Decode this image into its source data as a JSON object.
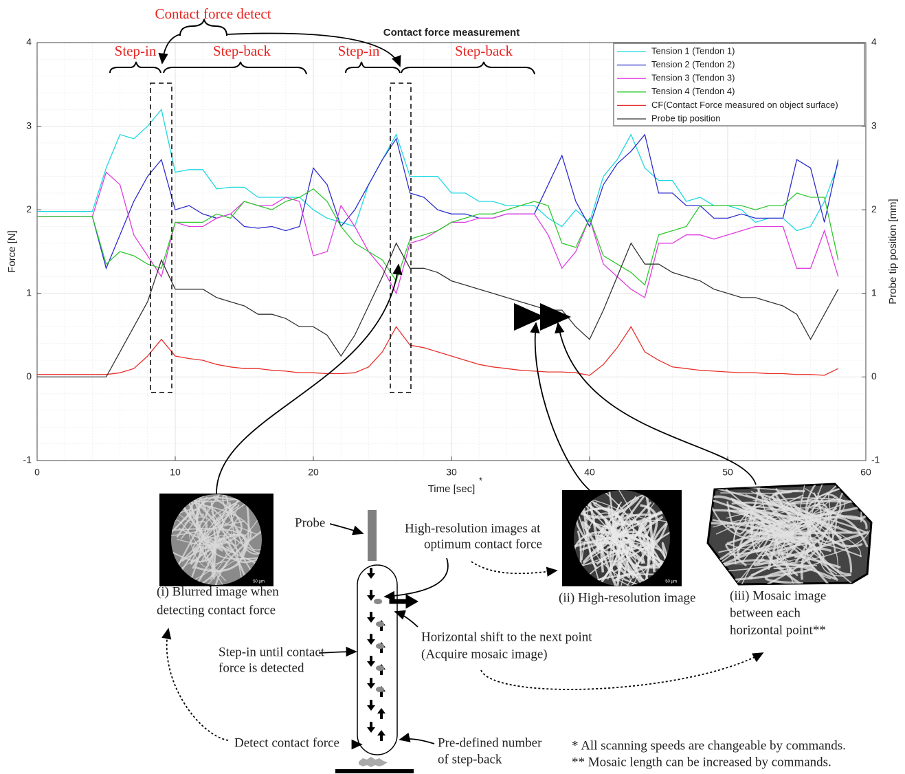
{
  "chart_data": {
    "type": "line",
    "title": "Contact force measurement",
    "xlabel": "Time [sec]",
    "xlabel_note": "*",
    "ylabel": "Force [N]",
    "y2label": "Probe tip position [mm]",
    "xlim": [
      0,
      60
    ],
    "xticks": [
      0,
      10,
      20,
      30,
      40,
      50,
      60
    ],
    "ylim": [
      -1,
      4
    ],
    "yticks": [
      -1,
      0,
      1,
      2,
      3,
      4
    ],
    "y2lim": [
      -1,
      4
    ],
    "y2ticks": [
      -1,
      0,
      1,
      2,
      3,
      4
    ],
    "grid": true,
    "legend": "upper right",
    "x": [
      0,
      1,
      2,
      3,
      4,
      5,
      6,
      7,
      8,
      9,
      10,
      11,
      12,
      13,
      14,
      15,
      16,
      17,
      18,
      19,
      20,
      21,
      22,
      23,
      24,
      25,
      26,
      27,
      28,
      29,
      30,
      31,
      32,
      33,
      34,
      35,
      36,
      37,
      38,
      39,
      40,
      41,
      42,
      43,
      44,
      45,
      46,
      47,
      48,
      49,
      50,
      51,
      52,
      53,
      54,
      55,
      56,
      57,
      58
    ],
    "series": [
      {
        "name": "Tension 1 (Tendon 1)",
        "color": "#1fd8e0",
        "values": [
          1.98,
          1.98,
          1.98,
          1.98,
          1.98,
          2.5,
          2.9,
          2.85,
          3.0,
          3.2,
          2.45,
          2.48,
          2.48,
          2.25,
          2.27,
          2.27,
          2.15,
          2.15,
          2.15,
          2.15,
          2.0,
          1.9,
          1.85,
          1.8,
          2.3,
          2.6,
          2.9,
          2.4,
          2.4,
          2.4,
          2.2,
          2.2,
          2.1,
          2.1,
          2.05,
          2.05,
          2.05,
          1.9,
          1.8,
          2.0,
          1.85,
          2.4,
          2.6,
          2.9,
          2.5,
          2.35,
          2.35,
          2.1,
          2.15,
          2.05,
          2.05,
          2.0,
          1.85,
          1.9,
          1.9,
          1.75,
          1.8,
          2.1,
          2.55
        ]
      },
      {
        "name": "Tension 2 (Tendon 2)",
        "color": "#2d2dcc",
        "values": [
          1.92,
          1.92,
          1.92,
          1.92,
          1.92,
          1.3,
          1.7,
          2.1,
          2.4,
          2.6,
          2.0,
          2.05,
          1.95,
          1.9,
          1.95,
          1.8,
          1.78,
          1.8,
          1.75,
          1.8,
          2.5,
          2.3,
          1.8,
          2.0,
          2.3,
          2.6,
          2.85,
          2.2,
          2.15,
          2.0,
          1.95,
          1.95,
          1.9,
          1.9,
          1.95,
          1.95,
          1.95,
          2.3,
          2.65,
          2.1,
          1.8,
          2.3,
          2.55,
          2.7,
          2.9,
          2.2,
          2.2,
          2.05,
          2.05,
          1.9,
          1.9,
          1.95,
          1.9,
          1.9,
          1.9,
          2.6,
          2.5,
          1.85,
          2.6
        ]
      },
      {
        "name": "Tension 3 (Tendon 3)",
        "color": "#e03ce0",
        "values": [
          1.92,
          1.92,
          1.92,
          1.92,
          1.92,
          2.45,
          2.3,
          1.7,
          1.45,
          1.2,
          1.85,
          1.8,
          1.8,
          1.9,
          1.95,
          2.1,
          2.05,
          2.05,
          2.15,
          2.1,
          1.45,
          1.5,
          2.05,
          1.8,
          1.5,
          1.3,
          1.0,
          1.6,
          1.65,
          1.75,
          1.85,
          1.85,
          1.9,
          1.9,
          1.95,
          1.95,
          1.95,
          1.7,
          1.3,
          1.5,
          1.9,
          1.35,
          1.2,
          1.05,
          0.95,
          1.6,
          1.6,
          1.7,
          1.7,
          1.65,
          1.7,
          1.75,
          1.8,
          1.8,
          1.8,
          1.3,
          1.3,
          1.75,
          1.2
        ]
      },
      {
        "name": "Tension 4 (Tendon 4)",
        "color": "#2ec82e",
        "values": [
          1.92,
          1.92,
          1.92,
          1.92,
          1.92,
          1.35,
          1.5,
          1.45,
          1.35,
          1.3,
          1.85,
          1.85,
          1.85,
          1.95,
          1.9,
          2.1,
          2.05,
          2.0,
          2.1,
          2.15,
          2.25,
          2.1,
          1.8,
          1.6,
          1.5,
          1.4,
          1.15,
          1.65,
          1.7,
          1.75,
          1.85,
          1.9,
          1.95,
          1.95,
          2.0,
          2.05,
          2.1,
          2.05,
          1.6,
          1.55,
          1.9,
          1.45,
          1.35,
          1.25,
          1.1,
          1.7,
          1.75,
          1.8,
          2.05,
          2.05,
          2.05,
          2.05,
          2.0,
          2.05,
          2.05,
          2.2,
          2.15,
          2.15,
          1.4
        ]
      },
      {
        "name": "CF(Contact Force measured on object surface)",
        "color": "#e8302a",
        "values": [
          0.03,
          0.03,
          0.03,
          0.03,
          0.03,
          0.03,
          0.05,
          0.1,
          0.25,
          0.45,
          0.25,
          0.22,
          0.2,
          0.15,
          0.12,
          0.1,
          0.1,
          0.08,
          0.07,
          0.05,
          0.05,
          0.04,
          0.04,
          0.05,
          0.12,
          0.3,
          0.6,
          0.38,
          0.35,
          0.3,
          0.25,
          0.2,
          0.15,
          0.12,
          0.1,
          0.08,
          0.07,
          0.06,
          0.06,
          0.05,
          0.02,
          0.15,
          0.35,
          0.6,
          0.3,
          0.2,
          0.12,
          0.1,
          0.08,
          0.07,
          0.06,
          0.05,
          0.05,
          0.04,
          0.04,
          0.03,
          0.03,
          0.02,
          0.1
        ]
      },
      {
        "name": "Probe tip position",
        "color": "#333333",
        "axis": "y2",
        "values": [
          0,
          0,
          0,
          0,
          0,
          0,
          0.3,
          0.6,
          0.9,
          1.4,
          1.05,
          1.05,
          1.05,
          0.95,
          0.9,
          0.85,
          0.75,
          0.75,
          0.7,
          0.6,
          0.6,
          0.5,
          0.25,
          0.5,
          0.85,
          1.2,
          1.6,
          1.3,
          1.3,
          1.25,
          1.15,
          1.1,
          1.05,
          1.0,
          0.95,
          0.9,
          0.85,
          0.8,
          0.8,
          0.6,
          0.45,
          0.8,
          1.2,
          1.6,
          1.35,
          1.35,
          1.25,
          1.2,
          1.15,
          1.05,
          1.0,
          0.95,
          0.95,
          0.9,
          0.85,
          0.75,
          0.45,
          0.75,
          1.05
        ]
      }
    ],
    "annotations": [
      "Contact force detect",
      "Step-in",
      "Step-back",
      "Step-in",
      "Step-back"
    ]
  },
  "diagram": {
    "probe": "Probe",
    "high_res_note": [
      "High-resolution images at",
      "optimum contact force"
    ],
    "image_i": [
      "(i) Blurred image when",
      "detecting contact force"
    ],
    "image_ii": "(ii) High-resolution image",
    "image_iii": [
      "(iii) Mosaic image",
      "between each",
      "horizontal point**"
    ],
    "shift": [
      "Horizontal shift to the next point",
      "(Acquire mosaic image)"
    ],
    "step_in": [
      "Step-in until contact",
      "force is detected"
    ],
    "detect": "Detect contact force",
    "step_back": [
      "Pre-defined number",
      "of step-back"
    ],
    "scale_bar": "50 µm",
    "footnotes": [
      "* All scanning speeds are changeable by commands.",
      "** Mosaic length can be increased by commands."
    ]
  }
}
